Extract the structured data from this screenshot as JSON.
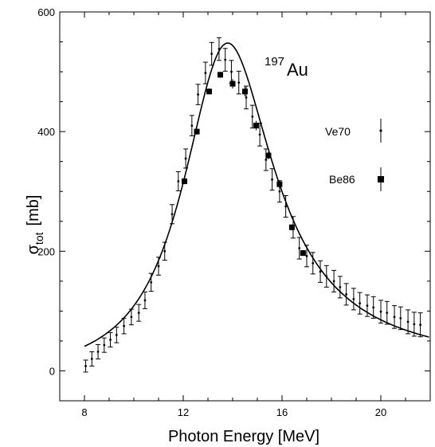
{
  "chart_data": {
    "type": "scatter",
    "xlabel": "Photon Energy [MeV]",
    "ylabel_main": "σ",
    "ylabel_sub": "tot",
    "ylabel_unit": "[mb]",
    "xlim": [
      7,
      22
    ],
    "ylim": [
      -50,
      600
    ],
    "x_ticks": [
      8,
      12,
      16,
      20
    ],
    "y_ticks": [
      0,
      200,
      400,
      600
    ],
    "x_minor_step": 1,
    "y_minor_step": 50,
    "annotation": {
      "mass_number": "197",
      "element": "Au"
    },
    "legend": [
      {
        "name": "Ve70",
        "marker": "dot-errorbar"
      },
      {
        "name": "Be86",
        "marker": "square-errorbar"
      }
    ],
    "series": [
      {
        "name": "Ve70",
        "marker": "dot-errorbar",
        "x": [
          8.05,
          8.3,
          8.55,
          8.8,
          9.05,
          9.3,
          9.6,
          9.9,
          10.2,
          10.45,
          10.7,
          11.0,
          11.25,
          11.55,
          11.8,
          12.1,
          12.35,
          12.6,
          12.9,
          13.15,
          13.45,
          13.7,
          13.95,
          14.25,
          14.55,
          14.8,
          15.1,
          15.35,
          15.6,
          15.9,
          16.15,
          16.45,
          16.7,
          17.0,
          17.25,
          17.55,
          17.8,
          18.1,
          18.35,
          18.6,
          18.9,
          19.15,
          19.45,
          19.7,
          20.0,
          20.25,
          20.55,
          20.8,
          21.1,
          21.35,
          21.6
        ],
        "y": [
          8,
          20,
          32,
          43,
          52,
          60,
          75,
          90,
          97,
          118,
          148,
          175,
          200,
          262,
          317,
          355,
          410,
          462,
          498,
          530,
          538,
          520,
          500,
          482,
          457,
          425,
          395,
          353,
          320,
          300,
          275,
          240,
          205,
          192,
          180,
          166,
          158,
          150,
          140,
          128,
          120,
          113,
          109,
          106,
          99,
          97,
          90,
          88,
          82,
          78,
          77
        ],
        "err": [
          10,
          12,
          12,
          12,
          12,
          13,
          13,
          13,
          14,
          14,
          15,
          15,
          15,
          16,
          16,
          16,
          17,
          17,
          18,
          19,
          19,
          19,
          19,
          19,
          19,
          19,
          19,
          18,
          18,
          18,
          18,
          18,
          18,
          18,
          18,
          18,
          18,
          18,
          18,
          18,
          18,
          18,
          18,
          18,
          19,
          19,
          19,
          19,
          20,
          20,
          20
        ]
      },
      {
        "name": "Be86",
        "marker": "square-errorbar",
        "x": [
          12.05,
          12.55,
          13.05,
          13.5,
          14.0,
          14.5,
          14.95,
          15.45,
          15.9,
          16.4,
          16.85
        ],
        "y": [
          317,
          400,
          467,
          495,
          480,
          467,
          410,
          360,
          312,
          240,
          197
        ],
        "err": [
          5,
          5,
          5,
          5,
          8,
          8,
          8,
          6,
          6,
          5,
          5
        ]
      },
      {
        "name": "fit",
        "type": "line",
        "peak_energy": 13.8,
        "peak_cross_section": 548,
        "width": 4.5
      }
    ]
  }
}
